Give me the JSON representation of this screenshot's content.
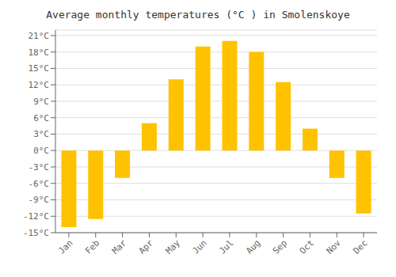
{
  "chart_data": {
    "type": "bar",
    "title": "Average monthly temperatures (°C ) in Smolenskoye",
    "categories": [
      "Jan",
      "Feb",
      "Mar",
      "Apr",
      "May",
      "Jun",
      "Jul",
      "Aug",
      "Sep",
      "Oct",
      "Nov",
      "Dec"
    ],
    "values": [
      -14,
      -12.5,
      -5,
      5,
      13,
      19,
      20,
      18,
      12.5,
      4,
      -5,
      -11.5
    ],
    "color": "#FFC200",
    "ylim": [
      -15,
      22
    ],
    "yticks": [
      {
        "value": -15,
        "label": "-15°C"
      },
      {
        "value": -12,
        "label": "-12°C"
      },
      {
        "value": -9,
        "label": "-9°C"
      },
      {
        "value": -6,
        "label": "-6°C"
      },
      {
        "value": -3,
        "label": "-3°C"
      },
      {
        "value": 0,
        "label": "0°C"
      },
      {
        "value": 3,
        "label": "3°C"
      },
      {
        "value": 6,
        "label": "6°C"
      },
      {
        "value": 9,
        "label": "9°C"
      },
      {
        "value": 12,
        "label": "12°C"
      },
      {
        "value": 15,
        "label": "15°C"
      },
      {
        "value": 18,
        "label": "18°C"
      },
      {
        "value": 21,
        "label": "21°C"
      }
    ],
    "grid": true
  }
}
